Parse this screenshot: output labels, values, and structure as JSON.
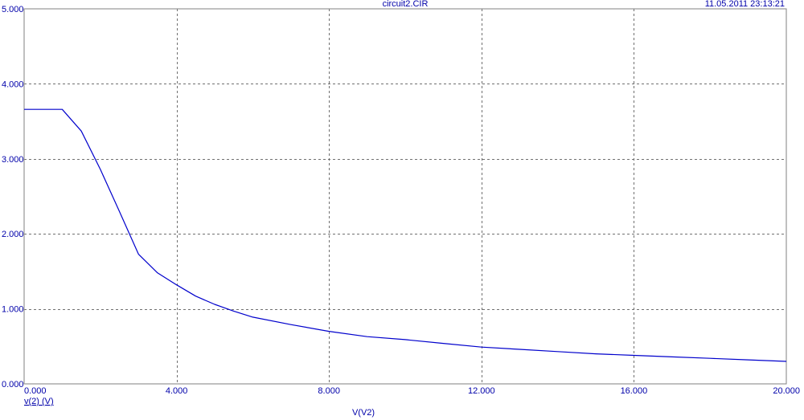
{
  "header": {
    "file_name": "circuit2.CIR",
    "timestamp": "11.05.2011 23:13:21"
  },
  "chart_data": {
    "type": "line",
    "title": "circuit2.CIR",
    "xlabel": "V(V2)",
    "ylabel": "",
    "trace_label": "v(2) (V)",
    "xlim": [
      0,
      20
    ],
    "ylim": [
      0,
      5
    ],
    "x_ticks": [
      0,
      4,
      8,
      12,
      16,
      20
    ],
    "x_tick_labels": [
      "0.000",
      "4.000",
      "8.000",
      "12.000",
      "16.000",
      "20.000"
    ],
    "y_ticks": [
      0,
      1,
      2,
      3,
      4,
      5
    ],
    "y_tick_labels": [
      "0.000",
      "1.000",
      "2.000",
      "3.000",
      "4.000",
      "5.000"
    ],
    "grid": true,
    "series": [
      {
        "color": "#0000cc",
        "x": [
          0,
          0.5,
          1.0,
          1.5,
          2.0,
          2.5,
          3.0,
          3.5,
          4.0,
          4.5,
          5.0,
          5.5,
          6.0,
          7.0,
          8.0,
          9.0,
          10.0,
          11.0,
          12.0,
          13.0,
          14.0,
          15.0,
          16.0,
          17.0,
          18.0,
          19.0,
          20.0
        ],
        "y": [
          3.66,
          3.66,
          3.66,
          3.37,
          2.86,
          2.3,
          1.73,
          1.48,
          1.32,
          1.17,
          1.06,
          0.97,
          0.89,
          0.79,
          0.7,
          0.63,
          0.59,
          0.54,
          0.49,
          0.46,
          0.43,
          0.4,
          0.38,
          0.36,
          0.34,
          0.32,
          0.3
        ]
      }
    ]
  }
}
